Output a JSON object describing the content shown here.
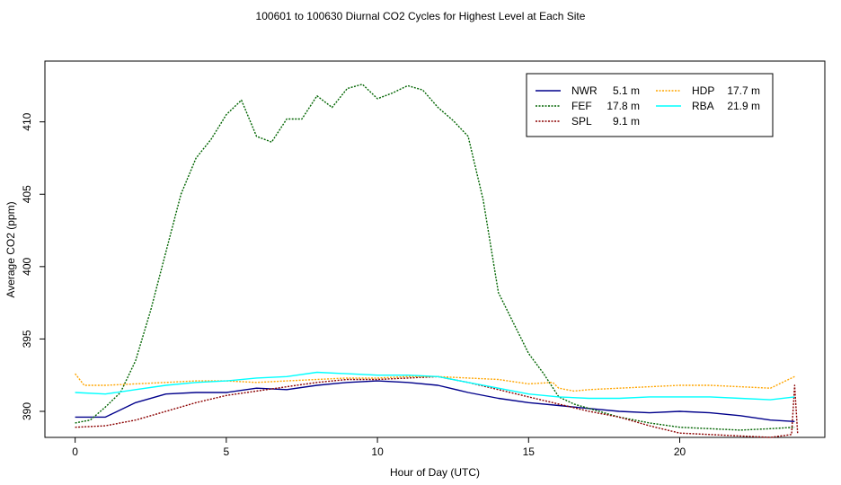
{
  "chart_data": {
    "type": "line",
    "title": "100601  to  100630 Diurnal CO2 Cycles for Highest Level at Each Site",
    "xlabel": "Hour of Day (UTC)",
    "ylabel": "Average CO2 (ppm)",
    "xlim": [
      -1,
      24.8
    ],
    "ylim": [
      388.2,
      414.2
    ],
    "xticks": [
      0,
      5,
      10,
      15,
      20
    ],
    "yticks": [
      390,
      395,
      400,
      405,
      410
    ],
    "grid": false,
    "legend_position": "top-right",
    "series": [
      {
        "name": "NWR",
        "height": "5.1 m",
        "color": "#00008B",
        "style": "solid",
        "x": [
          0,
          1,
          2,
          3,
          4,
          5,
          6,
          7,
          8,
          9,
          10,
          11,
          12,
          13,
          14,
          15,
          16,
          17,
          18,
          19,
          20,
          21,
          22,
          23,
          23.8
        ],
        "y": [
          389.6,
          389.6,
          390.6,
          391.2,
          391.3,
          391.3,
          391.6,
          391.5,
          391.8,
          392.0,
          392.1,
          392.0,
          391.8,
          391.3,
          390.9,
          390.6,
          390.4,
          390.2,
          390.0,
          389.9,
          390.0,
          389.9,
          389.7,
          389.4,
          389.3
        ]
      },
      {
        "name": "FEF",
        "height": "17.8 m",
        "color": "#006400",
        "style": "dotted",
        "x": [
          0,
          0.5,
          1,
          1.5,
          2,
          2.5,
          3,
          3.5,
          4,
          4.5,
          5,
          5.5,
          6,
          6.5,
          7,
          7.5,
          8,
          8.5,
          9,
          9.5,
          10,
          10.5,
          11,
          11.5,
          12,
          12.5,
          13,
          13.5,
          14,
          14.5,
          15,
          15.5,
          16,
          16.5,
          17,
          17.5,
          18,
          19,
          20,
          21,
          22,
          23,
          23.8
        ],
        "y": [
          389.2,
          389.4,
          390.3,
          391.3,
          393.5,
          397,
          401,
          405,
          407.5,
          408.8,
          410.5,
          411.5,
          409,
          408.6,
          410.2,
          410.2,
          411.8,
          411,
          412.3,
          412.6,
          411.6,
          412,
          412.5,
          412.2,
          411,
          410.1,
          409,
          404.6,
          398.2,
          396.1,
          394,
          392.6,
          391,
          390.5,
          390.2,
          389.9,
          389.6,
          389.2,
          388.9,
          388.8,
          388.7,
          388.8,
          388.9
        ]
      },
      {
        "name": "SPL",
        "height": "9.1 m",
        "color": "#8B0000",
        "style": "dotted",
        "x": [
          0,
          1,
          2,
          3,
          4,
          5,
          6,
          7,
          8,
          9,
          10,
          11,
          12,
          13,
          14,
          15,
          16,
          17,
          18,
          19,
          20,
          21,
          22,
          23,
          23.7,
          23.8,
          23.9
        ],
        "y": [
          388.9,
          389.0,
          389.4,
          390.0,
          390.6,
          391.1,
          391.4,
          391.7,
          392.0,
          392.2,
          392.2,
          392.3,
          392.4,
          392.0,
          391.5,
          391.0,
          390.5,
          390.0,
          389.6,
          389.0,
          388.5,
          388.4,
          388.3,
          388.2,
          388.4,
          391.8,
          388.5
        ]
      },
      {
        "name": "HDP",
        "height": "17.7 m",
        "color": "#FFA500",
        "style": "dotted",
        "x": [
          0,
          0.3,
          1,
          2,
          3,
          4,
          5,
          6,
          7,
          8,
          9,
          10,
          11,
          12,
          13,
          14,
          15,
          15.8,
          16,
          16.5,
          17,
          18,
          19,
          20,
          21,
          22,
          23,
          23.8
        ],
        "y": [
          392.6,
          391.8,
          391.8,
          391.9,
          392.0,
          392.1,
          392.1,
          392.0,
          392.1,
          392.2,
          392.3,
          392.3,
          392.4,
          392.4,
          392.3,
          392.2,
          391.9,
          392.0,
          391.6,
          391.4,
          391.5,
          391.6,
          391.7,
          391.8,
          391.8,
          391.7,
          391.6,
          392.4
        ]
      },
      {
        "name": "RBA",
        "height": "21.9 m",
        "color": "#00FFFF",
        "style": "solid",
        "x": [
          0,
          1,
          2,
          3,
          4,
          5,
          6,
          7,
          8,
          9,
          10,
          11,
          12,
          13,
          14,
          15,
          16,
          17,
          18,
          19,
          20,
          21,
          22,
          23,
          23.8
        ],
        "y": [
          391.3,
          391.2,
          391.5,
          391.8,
          392.0,
          392.1,
          392.3,
          392.4,
          392.7,
          392.6,
          392.5,
          392.5,
          392.4,
          392.0,
          391.6,
          391.2,
          391.0,
          390.9,
          390.9,
          391.0,
          391.0,
          391.0,
          390.9,
          390.8,
          391.0
        ]
      }
    ]
  }
}
